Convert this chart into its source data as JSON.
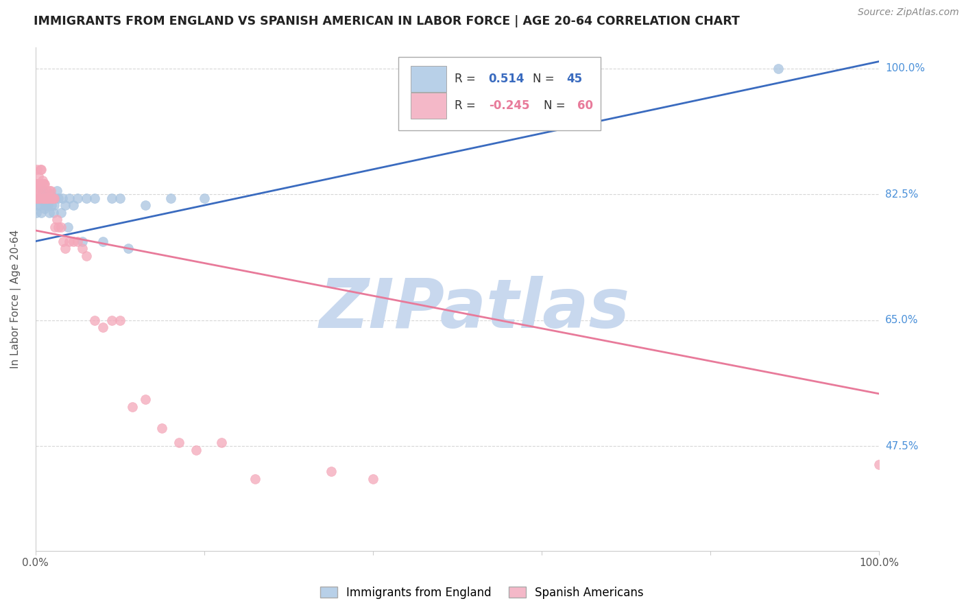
{
  "title": "IMMIGRANTS FROM ENGLAND VS SPANISH AMERICAN IN LABOR FORCE | AGE 20-64 CORRELATION CHART",
  "source": "Source: ZipAtlas.com",
  "ylabel": "In Labor Force | Age 20-64",
  "watermark": "ZIPatlas",
  "x_range": [
    0.0,
    1.0
  ],
  "y_range": [
    0.33,
    1.03
  ],
  "blue_R": 0.514,
  "blue_N": 45,
  "pink_R": -0.245,
  "pink_N": 60,
  "blue_color": "#a8c4e0",
  "pink_color": "#f4a7b9",
  "blue_line_color": "#3a6bbf",
  "pink_line_color": "#e87a9a",
  "legend_box_blue": "#b8d0e8",
  "legend_box_pink": "#f4b8c8",
  "grid_color": "#cccccc",
  "title_color": "#222222",
  "axis_label_color": "#555555",
  "right_label_color": "#4a90d9",
  "source_color": "#888888",
  "watermark_color": "#c8d8ee",
  "blue_scatter_x": [
    0.001,
    0.002,
    0.005,
    0.006,
    0.007,
    0.007,
    0.008,
    0.009,
    0.01,
    0.011,
    0.011,
    0.012,
    0.012,
    0.013,
    0.014,
    0.015,
    0.016,
    0.016,
    0.017,
    0.018,
    0.019,
    0.02,
    0.021,
    0.022,
    0.023,
    0.025,
    0.027,
    0.03,
    0.032,
    0.035,
    0.038,
    0.04,
    0.045,
    0.05,
    0.055,
    0.06,
    0.07,
    0.08,
    0.09,
    0.1,
    0.11,
    0.13,
    0.16,
    0.2,
    0.88
  ],
  "blue_scatter_y": [
    0.8,
    0.81,
    0.82,
    0.81,
    0.8,
    0.82,
    0.83,
    0.825,
    0.815,
    0.805,
    0.82,
    0.81,
    0.82,
    0.815,
    0.82,
    0.81,
    0.8,
    0.82,
    0.82,
    0.825,
    0.81,
    0.82,
    0.8,
    0.81,
    0.82,
    0.83,
    0.82,
    0.8,
    0.82,
    0.81,
    0.78,
    0.82,
    0.81,
    0.82,
    0.76,
    0.82,
    0.82,
    0.76,
    0.82,
    0.82,
    0.75,
    0.81,
    0.82,
    0.82,
    1.0
  ],
  "pink_scatter_x": [
    0.001,
    0.001,
    0.001,
    0.002,
    0.002,
    0.002,
    0.003,
    0.003,
    0.004,
    0.004,
    0.005,
    0.006,
    0.006,
    0.007,
    0.007,
    0.008,
    0.008,
    0.009,
    0.009,
    0.01,
    0.01,
    0.011,
    0.011,
    0.012,
    0.013,
    0.013,
    0.014,
    0.015,
    0.016,
    0.017,
    0.018,
    0.019,
    0.02,
    0.021,
    0.022,
    0.023,
    0.025,
    0.027,
    0.03,
    0.033,
    0.035,
    0.04,
    0.045,
    0.05,
    0.055,
    0.06,
    0.07,
    0.08,
    0.09,
    0.1,
    0.115,
    0.13,
    0.15,
    0.17,
    0.19,
    0.22,
    0.26,
    0.35,
    0.4,
    1.0
  ],
  "pink_scatter_y": [
    0.82,
    0.83,
    0.84,
    0.82,
    0.84,
    0.86,
    0.83,
    0.85,
    0.82,
    0.84,
    0.82,
    0.84,
    0.86,
    0.83,
    0.86,
    0.82,
    0.845,
    0.82,
    0.84,
    0.82,
    0.84,
    0.82,
    0.84,
    0.82,
    0.82,
    0.83,
    0.82,
    0.82,
    0.83,
    0.82,
    0.83,
    0.82,
    0.82,
    0.82,
    0.82,
    0.78,
    0.79,
    0.78,
    0.78,
    0.76,
    0.75,
    0.76,
    0.76,
    0.76,
    0.75,
    0.74,
    0.65,
    0.64,
    0.65,
    0.65,
    0.53,
    0.54,
    0.5,
    0.48,
    0.47,
    0.48,
    0.43,
    0.44,
    0.43,
    0.45
  ],
  "blue_line_x": [
    0.0,
    1.0
  ],
  "blue_line_y_start": 0.76,
  "blue_line_y_end": 1.01,
  "pink_line_x": [
    0.0,
    1.0
  ],
  "pink_line_y_start": 0.775,
  "pink_line_y_end": 0.548,
  "figsize": [
    14.06,
    8.92
  ],
  "dpi": 100,
  "y_ticks": [
    1.0,
    0.825,
    0.65,
    0.475
  ],
  "y_tick_labels": [
    "100.0%",
    "82.5%",
    "65.0%",
    "47.5%"
  ],
  "x_ticks": [
    0.0,
    0.2,
    0.4,
    0.6,
    0.8,
    1.0
  ],
  "x_tick_labels_show": [
    "0.0%",
    "",
    "",
    "",
    "",
    "100.0%"
  ]
}
